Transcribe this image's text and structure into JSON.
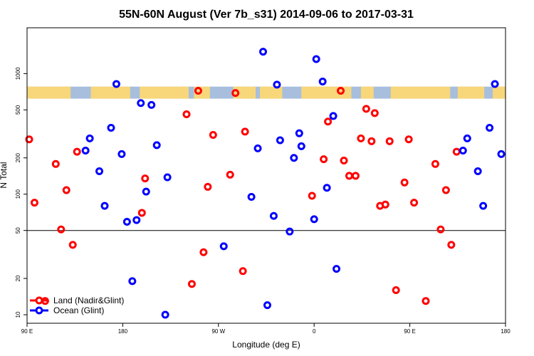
{
  "chart_data": {
    "type": "scatter",
    "title": "55N-60N August (Ver 7b_s31)   2014-09-06 to 2017-03-31",
    "xlabel": "Longitude (deg E)",
    "ylabel": "N Total",
    "y_scale": "log",
    "xlim": [
      90,
      540
    ],
    "ylim": [
      8.5,
      2400
    ],
    "x_ticks": [
      {
        "value": 90,
        "label": "90 E"
      },
      {
        "value": 180,
        "label": "180"
      },
      {
        "value": 270,
        "label": "90 W"
      },
      {
        "value": 360,
        "label": "0"
      },
      {
        "value": 450,
        "label": "90 E"
      },
      {
        "value": 540,
        "label": "180"
      }
    ],
    "y_ticks": [
      {
        "value": 10,
        "label": "10"
      },
      {
        "value": 20,
        "label": "20"
      },
      {
        "value": 50,
        "label": "50"
      },
      {
        "value": 100,
        "label": "100"
      },
      {
        "value": 200,
        "label": "200"
      },
      {
        "value": 500,
        "label": "500"
      },
      {
        "value": 1000,
        "label": "1000"
      }
    ],
    "reference_line": {
      "y": 50
    },
    "map_strip": {
      "y_range": [
        620,
        780
      ],
      "colors": {
        "land": "#f8d77a",
        "ocean": "#a7bedd"
      }
    },
    "series": [
      {
        "name": "Land (Nadir&Glint)",
        "color": "#ff0000",
        "points": [
          {
            "x": 92,
            "y": 285
          },
          {
            "x": 97,
            "y": 85
          },
          {
            "x": 107,
            "y": 13
          },
          {
            "x": 117,
            "y": 178
          },
          {
            "x": 122,
            "y": 51
          },
          {
            "x": 127,
            "y": 108
          },
          {
            "x": 133,
            "y": 38
          },
          {
            "x": 137,
            "y": 225
          },
          {
            "x": 198,
            "y": 70
          },
          {
            "x": 201,
            "y": 135
          },
          {
            "x": 240,
            "y": 460
          },
          {
            "x": 245,
            "y": 18
          },
          {
            "x": 251,
            "y": 720
          },
          {
            "x": 256,
            "y": 33
          },
          {
            "x": 260,
            "y": 115
          },
          {
            "x": 265,
            "y": 310
          },
          {
            "x": 281,
            "y": 145
          },
          {
            "x": 286,
            "y": 690
          },
          {
            "x": 293,
            "y": 23
          },
          {
            "x": 295,
            "y": 330
          },
          {
            "x": 358,
            "y": 97
          },
          {
            "x": 369,
            "y": 195
          },
          {
            "x": 373,
            "y": 400
          },
          {
            "x": 385,
            "y": 720
          },
          {
            "x": 388,
            "y": 190
          },
          {
            "x": 393,
            "y": 142
          },
          {
            "x": 399,
            "y": 142
          },
          {
            "x": 404,
            "y": 290
          },
          {
            "x": 409,
            "y": 510
          },
          {
            "x": 414,
            "y": 275
          },
          {
            "x": 417,
            "y": 470
          },
          {
            "x": 422,
            "y": 80
          },
          {
            "x": 427,
            "y": 82
          },
          {
            "x": 431,
            "y": 275
          },
          {
            "x": 437,
            "y": 16
          },
          {
            "x": 445,
            "y": 125
          },
          {
            "x": 449,
            "y": 285
          },
          {
            "x": 454,
            "y": 85
          },
          {
            "x": 465,
            "y": 13
          },
          {
            "x": 474,
            "y": 178
          },
          {
            "x": 479,
            "y": 51
          },
          {
            "x": 484,
            "y": 108
          },
          {
            "x": 489,
            "y": 38
          },
          {
            "x": 494,
            "y": 225
          }
        ]
      },
      {
        "name": "Ocean (Glint)",
        "color": "#0000ff",
        "points": [
          {
            "x": 145,
            "y": 230
          },
          {
            "x": 149,
            "y": 290
          },
          {
            "x": 158,
            "y": 155
          },
          {
            "x": 163,
            "y": 80
          },
          {
            "x": 169,
            "y": 355
          },
          {
            "x": 174,
            "y": 820
          },
          {
            "x": 179,
            "y": 215
          },
          {
            "x": 184,
            "y": 59
          },
          {
            "x": 189,
            "y": 19
          },
          {
            "x": 193,
            "y": 61
          },
          {
            "x": 197,
            "y": 570
          },
          {
            "x": 202,
            "y": 105
          },
          {
            "x": 207,
            "y": 550
          },
          {
            "x": 212,
            "y": 255
          },
          {
            "x": 220,
            "y": 10
          },
          {
            "x": 222,
            "y": 138
          },
          {
            "x": 275,
            "y": 37
          },
          {
            "x": 301,
            "y": 95
          },
          {
            "x": 307,
            "y": 240
          },
          {
            "x": 312,
            "y": 1520
          },
          {
            "x": 316,
            "y": 12
          },
          {
            "x": 322,
            "y": 66
          },
          {
            "x": 325,
            "y": 810
          },
          {
            "x": 328,
            "y": 280
          },
          {
            "x": 337,
            "y": 49
          },
          {
            "x": 341,
            "y": 200
          },
          {
            "x": 346,
            "y": 320
          },
          {
            "x": 348,
            "y": 250
          },
          {
            "x": 360,
            "y": 62
          },
          {
            "x": 362,
            "y": 1320
          },
          {
            "x": 368,
            "y": 860
          },
          {
            "x": 372,
            "y": 113
          },
          {
            "x": 378,
            "y": 445
          },
          {
            "x": 381,
            "y": 24
          },
          {
            "x": 500,
            "y": 230
          },
          {
            "x": 504,
            "y": 290
          },
          {
            "x": 514,
            "y": 155
          },
          {
            "x": 519,
            "y": 80
          },
          {
            "x": 525,
            "y": 355
          },
          {
            "x": 530,
            "y": 820
          },
          {
            "x": 536,
            "y": 215
          }
        ]
      }
    ],
    "legend": {
      "position": "bottom-left"
    }
  }
}
